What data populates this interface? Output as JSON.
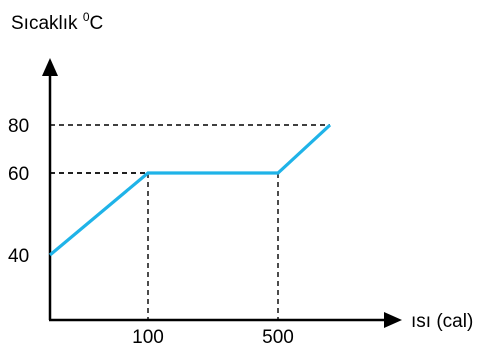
{
  "chart_data": {
    "type": "line",
    "ylabel": {
      "main": "Sıcaklık ",
      "sup": "0",
      "tail": "C"
    },
    "xlabel": "ısı (cal)",
    "x_ticks": [
      {
        "label": "100",
        "value": 100
      },
      {
        "label": "500",
        "value": 500
      }
    ],
    "y_ticks": [
      {
        "label": "40",
        "value": 40
      },
      {
        "label": "60",
        "value": 60
      },
      {
        "label": "80",
        "value": 80
      }
    ],
    "series": [
      {
        "color": "#1fb3e8",
        "points": [
          {
            "x": 0,
            "y": 40
          },
          {
            "x": 100,
            "y": 60
          },
          {
            "x": 500,
            "y": 60
          },
          {
            "x": 580,
            "y": 80
          }
        ]
      }
    ],
    "guides": [
      {
        "x": 100,
        "y": 60
      },
      {
        "x": 500,
        "y": 60
      },
      {
        "x": 580,
        "y": 80
      }
    ],
    "axis_color": "#000000",
    "guide_color": "#000000"
  }
}
